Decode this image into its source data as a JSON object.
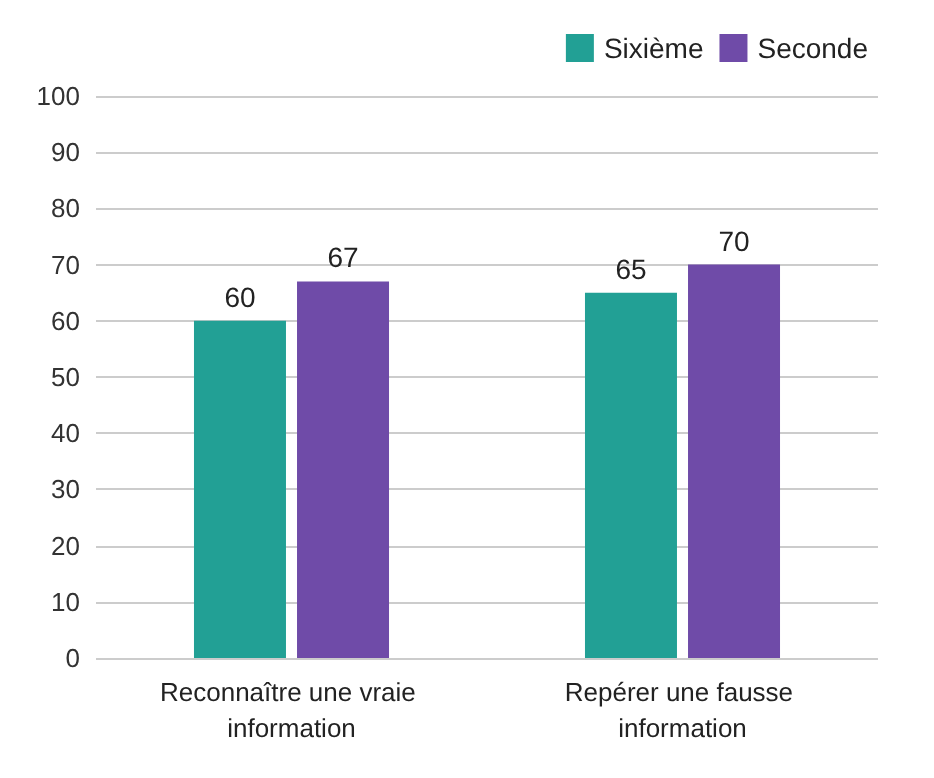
{
  "chart_data": {
    "type": "bar",
    "categories": [
      "Reconnaître une vraie information",
      "Repérer une fausse information"
    ],
    "series": [
      {
        "name": "Sixième",
        "color": "#22a095",
        "values": [
          60,
          65
        ]
      },
      {
        "name": "Seconde",
        "color": "#6f4ba8",
        "values": [
          67,
          70
        ]
      }
    ],
    "ylim": [
      0,
      100
    ],
    "yticks": [
      0,
      10,
      20,
      30,
      40,
      50,
      60,
      70,
      80,
      90,
      100
    ],
    "grid": "y",
    "legend": "top right",
    "data_labels": true
  }
}
